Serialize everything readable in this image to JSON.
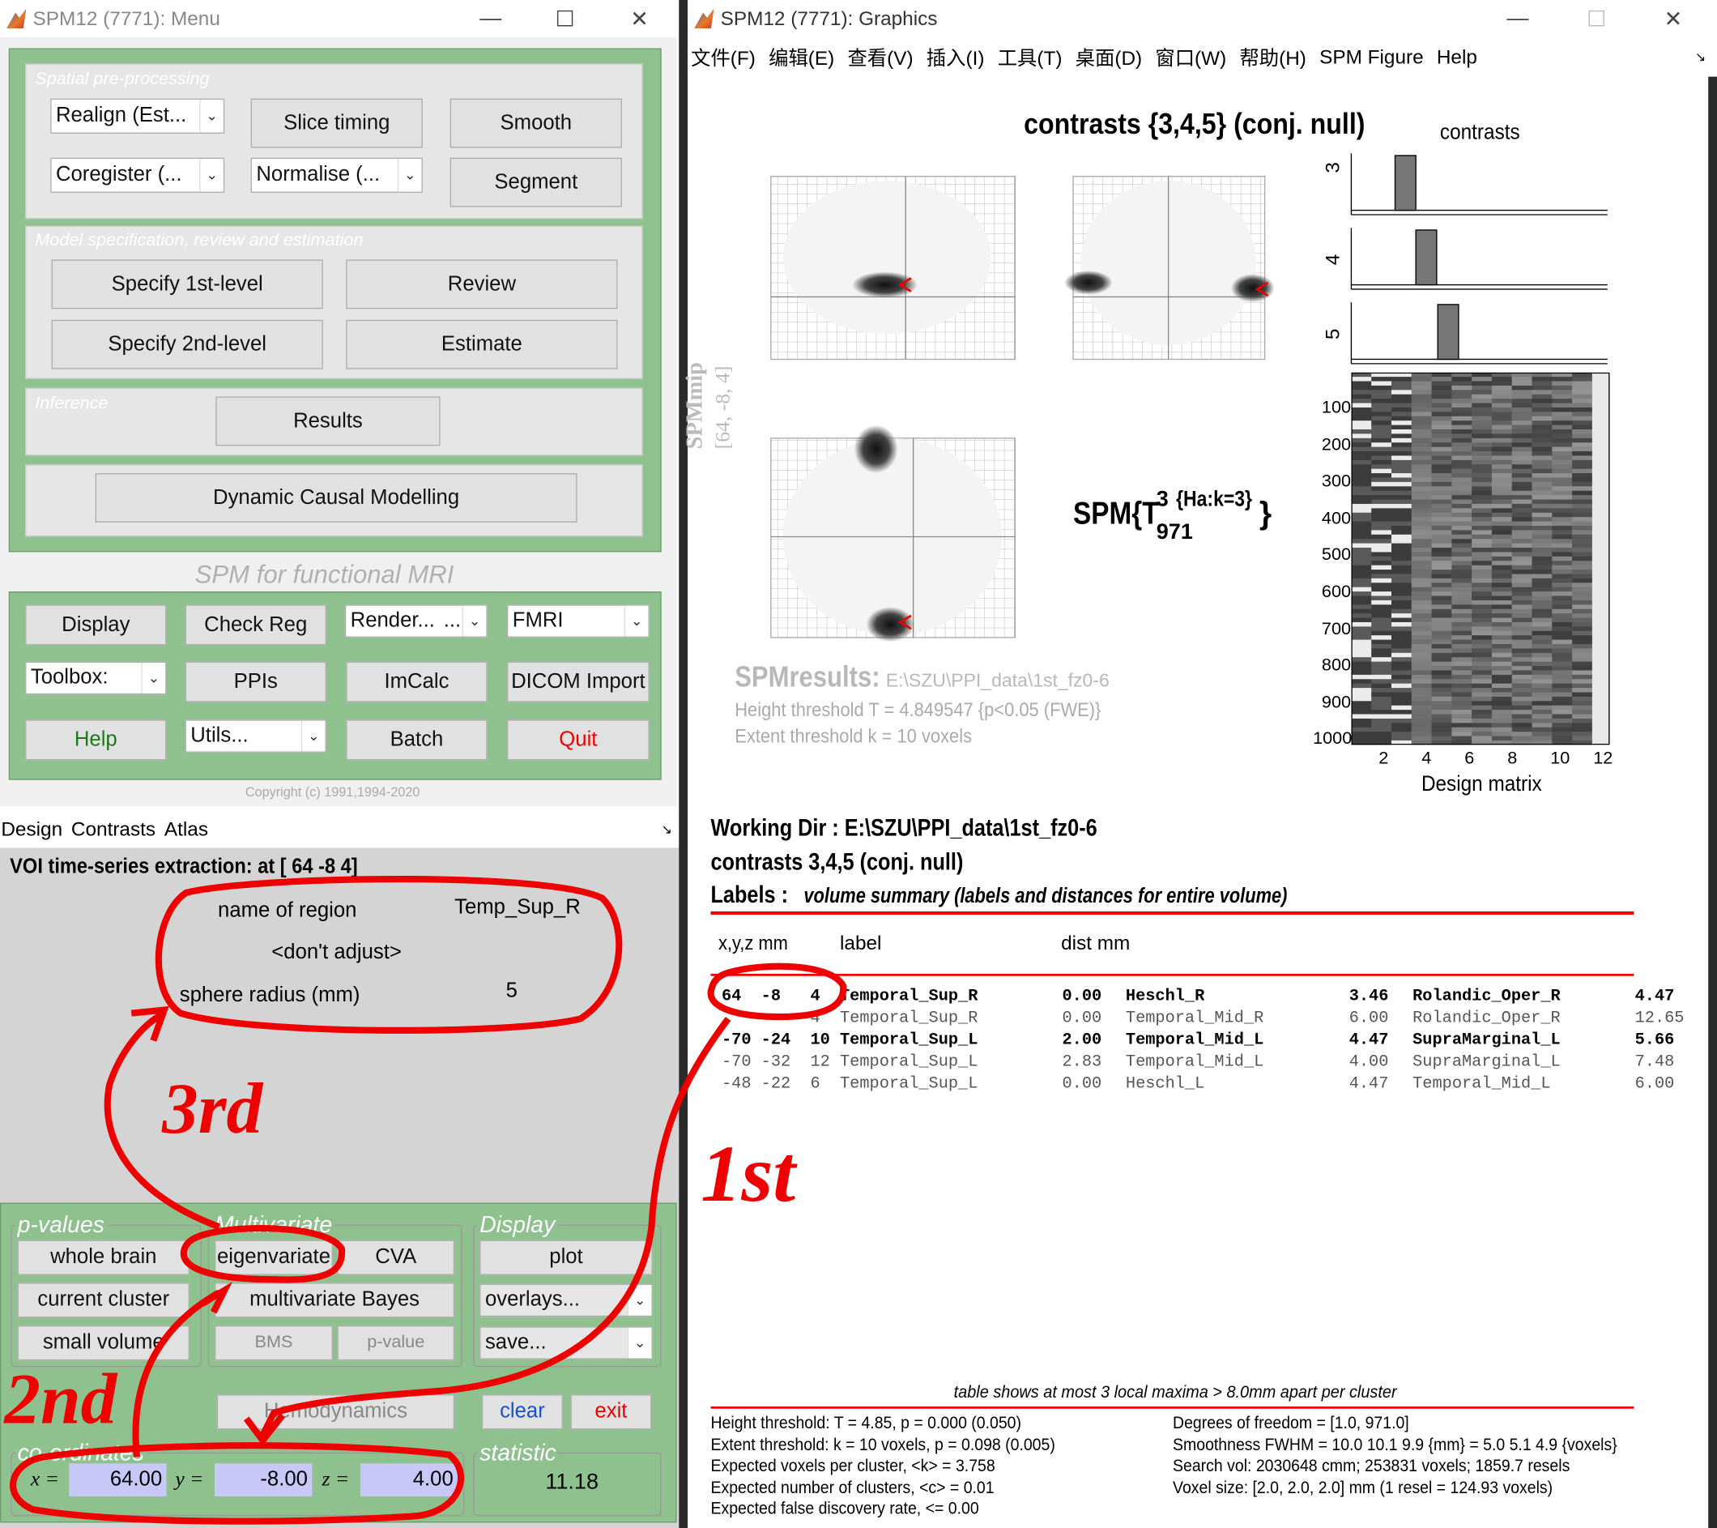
{
  "menu_window": {
    "title": "SPM12 (7771): Menu",
    "group1_label": "Spatial pre-processing",
    "realign": "Realign (Est...",
    "slice_timing": "Slice timing",
    "smooth": "Smooth",
    "coregister": "Coregister (...",
    "normalise": "Normalise (...",
    "segment": "Segment",
    "group2_label": "Model specification, review and estimation",
    "specify1": "Specify 1st-level",
    "review": "Review",
    "specify2": "Specify 2nd-level",
    "estimate": "Estimate",
    "group3_label": "Inference",
    "results": "Results",
    "dcm": "Dynamic Causal Modelling",
    "fmri_label": "SPM for functional MRI",
    "display": "Display",
    "check_reg": "Check Reg",
    "render": "Render...",
    "render_dots": "...",
    "modality": "FMRI",
    "toolbox": "Toolbox:",
    "ppis": "PPIs",
    "imcalc": "ImCalc",
    "dicom": "DICOM Import",
    "help": "Help",
    "utils": "Utils...",
    "batch": "Batch",
    "quit": "Quit",
    "copyright": "Copyright (c) 1991,1994-2020"
  },
  "interactive_window": {
    "menu": [
      "Design",
      "Contrasts",
      "Atlas"
    ],
    "voi_title": "VOI time-series extraction: at [ 64  -8   4]",
    "name_label": "name of region",
    "name_value": "Temp_Sup_R",
    "adjust": "<don't adjust>",
    "radius_label": "sphere radius (mm)",
    "radius_value": "5",
    "pvalues_label": "p-values",
    "whole_brain": "whole brain",
    "current_cluster": "current cluster",
    "small_volume": "small volume",
    "multivariate_label": "Multivariate",
    "eigenvariate": "eigenvariate",
    "cva": "CVA",
    "mvb": "multivariate Bayes",
    "bms": "BMS",
    "pvalue": "p-value",
    "display_label": "Display",
    "plot": "plot",
    "overlays": "overlays...",
    "save": "save...",
    "hemodynamics": "Hemodynamics",
    "clear": "clear",
    "exit": "exit",
    "coords_label": "co-ordinates",
    "x_label": "x =",
    "x": "64.00",
    "y_label": "y =",
    "y": "-8.00",
    "z_label": "z =",
    "z": "4.00",
    "statistic_label": "statistic",
    "statistic": "11.18"
  },
  "graphics_window": {
    "title": "SPM12 (7771): Graphics",
    "menu": [
      "文件(F)",
      "编辑(E)",
      "查看(V)",
      "插入(I)",
      "工具(T)",
      "桌面(D)",
      "窗口(W)",
      "帮助(H)",
      "SPM Figure",
      "Help"
    ],
    "contrast_title": "contrasts {3,4,5} (conj. null)",
    "contrasts_label": "contrasts",
    "contrast_rows": [
      "3",
      "4",
      "5"
    ],
    "spmmip": "SPMmip",
    "spmmip_coord": "[64, -8, 4]",
    "spm_stat": "SPM{T",
    "spm_sup": "3",
    "spm_sub": "971",
    "spm_ha": "{Ha:k=3}",
    "spm_close": "}",
    "results_label": "SPMresults:",
    "results_path": "E:\\SZU\\PPI_data\\1st_fz0-6",
    "height_thr": "Height threshold T = 4.849547  {p<0.05 (FWE)}",
    "extent_thr": "Extent threshold k = 10 voxels",
    "design_yticks": [
      "100",
      "200",
      "300",
      "400",
      "500",
      "600",
      "700",
      "800",
      "900",
      "1000"
    ],
    "design_xticks": [
      "2",
      "4",
      "6",
      "8",
      "10",
      "12"
    ],
    "design_label": "Design matrix",
    "working_dir": "Working Dir : E:\\SZU\\PPI_data\\1st_fz0-6",
    "contrasts_line": "contrasts 3,4,5 (conj. null)",
    "labels_title": "Labels :",
    "labels_sub": "volume summary (labels and distances for entire volume)",
    "col_xyz": "x,y,z mm",
    "col_label": "label",
    "col_dist": "dist mm",
    "table_rows": [
      [
        "64",
        "-8",
        "4",
        "Temporal_Sup_R",
        "0.00",
        "Heschl_R",
        "3.46",
        "Rolandic_Oper_R",
        "4.47"
      ],
      [
        "",
        "",
        "4",
        "Temporal_Sup_R",
        "0.00",
        "Temporal_Mid_R",
        "6.00",
        "Rolandic_Oper_R",
        "12.65"
      ],
      [
        "-70",
        "-24",
        "10",
        "Temporal_Sup_L",
        "2.00",
        "Temporal_Mid_L",
        "4.47",
        "SupraMarginal_L",
        "5.66"
      ],
      [
        "-70",
        "-32",
        "12",
        "Temporal_Sup_L",
        "2.83",
        "Temporal_Mid_L",
        "4.00",
        "SupraMarginal_L",
        "7.48"
      ],
      [
        "-48",
        "-22",
        "6",
        "Temporal_Sup_L",
        "0.00",
        "Heschl_L",
        "4.47",
        "Temporal_Mid_L",
        "6.00"
      ]
    ],
    "table_note": "table shows at most 3 local maxima > 8.0mm apart per cluster",
    "footer_left": [
      "Height threshold: T = 4.85, p = 0.000 (0.050)",
      "Extent threshold: k = 10 voxels, p = 0.098 (0.005)",
      "Expected voxels per cluster, <k> = 3.758",
      "Expected number of clusters, <c> = 0.01",
      "Expected false discovery rate, <= 0.00"
    ],
    "footer_right": [
      "Degrees of freedom = [1.0, 971.0]",
      "Smoothness FWHM = 10.0 10.1 9.9 {mm}  = 5.0 5.1 4.9 {voxels}",
      "Search vol: 2030648 cmm; 253831 voxels; 1859.7 resels",
      "Voxel size: [2.0, 2.0, 2.0] mm  (1 resel = 124.93 voxels)"
    ]
  },
  "annotations": {
    "first": "1st",
    "second": "2nd",
    "third": "3rd"
  },
  "colors": {
    "spm_green": "#8fc18f",
    "annotation_red": "#e00000"
  }
}
